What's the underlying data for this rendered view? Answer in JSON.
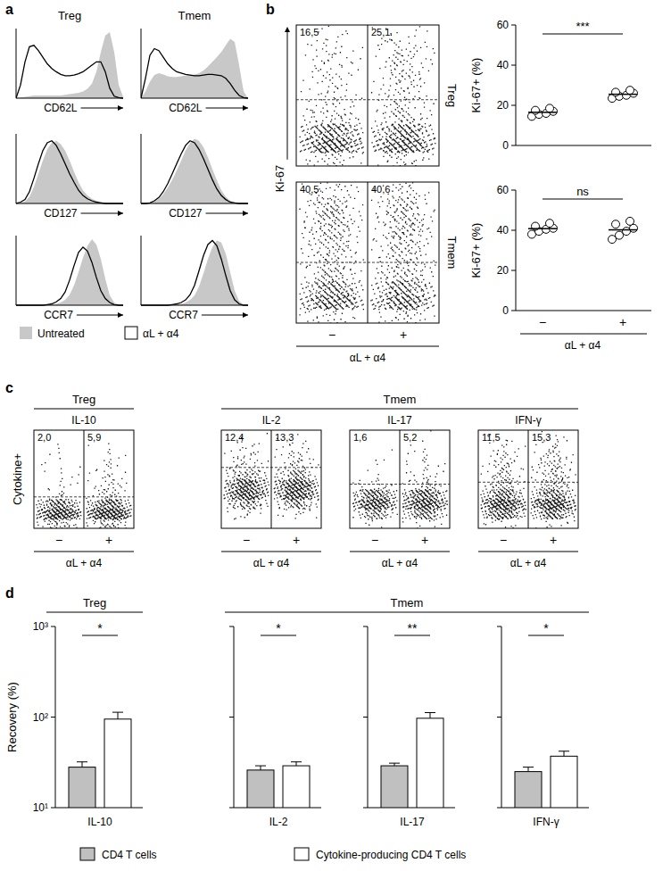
{
  "chart_data": [
    {
      "type": "histogram_overlay",
      "panel": "a",
      "columns": [
        "Treg",
        "Tmem"
      ],
      "x": [
        0,
        1,
        2,
        3,
        4,
        5,
        6,
        7,
        8,
        9,
        10,
        11,
        12,
        13,
        14,
        15,
        16,
        17,
        18,
        19,
        20,
        21,
        22,
        23,
        24
      ],
      "xlim": [
        0,
        24
      ],
      "ylim": [
        0,
        100
      ],
      "legend": "bottom",
      "series": [
        {
          "name": "Untreated",
          "color": "#c8c8c8",
          "type": "area"
        },
        {
          "name": "αL + α4",
          "color": "#000000",
          "type": "line"
        }
      ],
      "rows": [
        {
          "x_label": "CD62L",
          "cells": [
            {
              "values": [
                [
                  0,
                  1,
                  2,
                  3,
                  4,
                  4,
                  4,
                  4,
                  4,
                  4,
                  4,
                  5,
                  6,
                  7,
                  8,
                  10,
                  14,
                  22,
                  40,
                  70,
                  95,
                  100,
                  70,
                  20,
                  2
                ],
                [
                  0,
                  20,
                  55,
                  78,
                  80,
                  72,
                  62,
                  52,
                  45,
                  40,
                  36,
                  34,
                  34,
                  35,
                  37,
                  40,
                  45,
                  50,
                  55,
                  55,
                  40,
                  15,
                  3,
                  1,
                  0
                ]
              ]
            },
            {
              "values": [
                [
                  0,
                  10,
                  25,
                  35,
                  38,
                  36,
                  33,
                  32,
                  32,
                  33,
                  34,
                  35,
                  36,
                  38,
                  42,
                  48,
                  55,
                  62,
                  70,
                  80,
                  90,
                  85,
                  50,
                  10,
                  0
                ],
                [
                  0,
                  30,
                  65,
                  75,
                  72,
                  62,
                  52,
                  45,
                  40,
                  38,
                  36,
                  35,
                  34,
                  34,
                  35,
                  36,
                  36,
                  35,
                  34,
                  30,
                  22,
                  12,
                  4,
                  1,
                  0
                ]
              ]
            }
          ]
        },
        {
          "x_label": "CD127",
          "cells": [
            {
              "values": [
                [
                  0,
                  1,
                  3,
                  10,
                  25,
                  45,
                  65,
                  82,
                  92,
                  95,
                  90,
                  80,
                  65,
                  48,
                  32,
                  20,
                  12,
                  7,
                  4,
                  2,
                  1,
                  0,
                  0,
                  0,
                  0
                ],
                [
                  0,
                  2,
                  6,
                  18,
                  38,
                  60,
                  80,
                  92,
                  95,
                  88,
                  75,
                  60,
                  45,
                  32,
                  20,
                  12,
                  7,
                  4,
                  2,
                  1,
                  0,
                  0,
                  0,
                  0,
                  0
                ]
              ]
            },
            {
              "values": [
                [
                  0,
                  0,
                  1,
                  3,
                  7,
                  14,
                  24,
                  36,
                  50,
                  65,
                  80,
                  92,
                  98,
                  95,
                  85,
                  70,
                  52,
                  35,
                  20,
                  10,
                  4,
                  1,
                  0,
                  0,
                  0
                ],
                [
                  0,
                  0,
                  1,
                  4,
                  9,
                  18,
                  30,
                  45,
                  60,
                  75,
                  88,
                  95,
                  92,
                  82,
                  68,
                  52,
                  36,
                  22,
                  12,
                  6,
                  2,
                  1,
                  0,
                  0,
                  0
                ]
              ]
            }
          ]
        },
        {
          "x_label": "CCR7",
          "cells": [
            {
              "values": [
                [
                  0,
                  0,
                  0,
                  0,
                  0,
                  0,
                  0,
                  0,
                  1,
                  2,
                  4,
                  8,
                  16,
                  30,
                  50,
                  72,
                  90,
                  100,
                  92,
                  70,
                  40,
                  15,
                  4,
                  1,
                  0
                ],
                [
                  0,
                  0,
                  0,
                  0,
                  0,
                  0,
                  0,
                  1,
                  2,
                  5,
                  10,
                  20,
                  38,
                  60,
                  80,
                  88,
                  82,
                  65,
                  42,
                  22,
                  10,
                  4,
                  1,
                  0,
                  0
                ]
              ]
            },
            {
              "values": [
                [
                  0,
                  0,
                  0,
                  0,
                  0,
                  0,
                  0,
                  0,
                  1,
                  2,
                  4,
                  8,
                  15,
                  28,
                  48,
                  70,
                  88,
                  98,
                  95,
                  78,
                  50,
                  22,
                  6,
                  1,
                  0
                ],
                [
                  0,
                  0,
                  0,
                  0,
                  0,
                  0,
                  0,
                  1,
                  2,
                  4,
                  8,
                  16,
                  30,
                  52,
                  75,
                  92,
                  98,
                  90,
                  70,
                  45,
                  22,
                  8,
                  2,
                  0,
                  0
                ]
              ]
            }
          ]
        }
      ]
    },
    {
      "type": "dot_plot",
      "panel": "b",
      "y_label": "Ki-67",
      "x_label": "αL + α4",
      "categories": [
        "−",
        "+"
      ],
      "ylim": [
        0,
        100
      ],
      "bins": [
        0,
        10,
        20,
        30,
        40,
        50,
        60,
        70,
        80,
        90,
        100
      ],
      "plots": [
        {
          "title": "Treg",
          "gate": 47,
          "gate_labels": [
            "16,5",
            "25,1"
          ],
          "density": [
            [
              30,
              280,
              160,
              40,
              22,
              18,
              20,
              20,
              16,
              8
            ],
            [
              30,
              260,
              160,
              45,
              30,
              28,
              32,
              32,
              26,
              12
            ]
          ]
        },
        {
          "title": "Tmem",
          "gate": 43,
          "gate_labels": [
            "40,5",
            "40,6"
          ],
          "density": [
            [
              25,
              220,
              130,
              50,
              40,
              45,
              55,
              60,
              50,
              25
            ],
            [
              30,
              210,
              135,
              55,
              42,
              46,
              56,
              58,
              48,
              24
            ]
          ]
        }
      ]
    },
    {
      "type": "scatter",
      "panel": "b",
      "y_label": "Ki-67+ (%)",
      "x_label": "αL + α4",
      "categories": [
        "−",
        "+"
      ],
      "ylim": [
        0,
        60
      ],
      "yticks": [
        0,
        20,
        40,
        60
      ],
      "marker": "circle",
      "plots": [
        {
          "values": [
            [
              14.5,
              15.5,
              16,
              17,
              17.5,
              18.5
            ],
            [
              23.5,
              24.5,
              25,
              26,
              26.5,
              27.5
            ]
          ],
          "means": [
            16.5,
            25.5
          ],
          "significance": "***"
        },
        {
          "values": [
            [
              38,
              39.5,
              40.5,
              41,
              42,
              43.5
            ],
            [
              35.5,
              37.5,
              39.5,
              41,
              43,
              44.5
            ]
          ],
          "means": [
            40.8,
            40.2
          ],
          "significance": "ns"
        }
      ]
    },
    {
      "type": "dot_plot",
      "panel": "c",
      "y_label": "Cytokine+",
      "x_label": "αL + α4",
      "categories": [
        "−",
        "+"
      ],
      "ylim": [
        0,
        100
      ],
      "bins": [
        0,
        10,
        20,
        30,
        40,
        50,
        60,
        70,
        80,
        90,
        100
      ],
      "groups": [
        {
          "name": "Treg",
          "plots": [
            {
              "title": "IL-10",
              "gate": 32,
              "gate_labels": [
                "2,0",
                "5,9"
              ],
              "density": [
                [
                  40,
                  300,
                  120,
                  8,
                  6,
                  5,
                  4,
                  3,
                  2,
                  0
                ],
                [
                  40,
                  320,
                  140,
                  20,
                  16,
                  12,
                  8,
                  5,
                  3,
                  0
                ]
              ]
            }
          ]
        },
        {
          "name": "Tmem",
          "plots": [
            {
              "title": "IL-2",
              "gate": 62,
              "gate_labels": [
                "12,4",
                "13,3"
              ],
              "density": [
                [
                  0,
                  10,
                  60,
                  200,
                  180,
                  50,
                  18,
                  14,
                  8,
                  2
                ],
                [
                  0,
                  10,
                  60,
                  210,
                  190,
                  55,
                  20,
                  16,
                  9,
                  2
                ]
              ]
            },
            {
              "title": "IL-17",
              "gate": 45,
              "gate_labels": [
                "1,6",
                "5,2"
              ],
              "density": [
                [
                  5,
                  60,
                  220,
                  120,
                  15,
                  3,
                  2,
                  1,
                  1,
                  0
                ],
                [
                  8,
                  80,
                  240,
                  140,
                  25,
                  12,
                  9,
                  6,
                  3,
                  1
                ]
              ]
            },
            {
              "title": "IFN-γ",
              "gate": 47,
              "gate_labels": [
                "11,5",
                "15,3"
              ],
              "density": [
                [
                  10,
                  120,
                  260,
                  100,
                  35,
                  25,
                  22,
                  15,
                  8,
                  3
                ],
                [
                  10,
                  110,
                  250,
                  100,
                  38,
                  30,
                  28,
                  20,
                  10,
                  4
                ]
              ]
            }
          ]
        }
      ]
    },
    {
      "type": "bar",
      "panel": "d",
      "y_label": "Recovery (%)",
      "log": "y",
      "ylim": [
        10,
        1000
      ],
      "legend": "bottom",
      "yticks": [
        {
          "value": 10,
          "label": "10¹"
        },
        {
          "value": 100,
          "label": "10²"
        },
        {
          "value": 1000,
          "label": "10³"
        }
      ],
      "series": [
        {
          "name": "CD4 T cells",
          "color": "#c0c0c0"
        },
        {
          "name": "Cytokine-producing CD4 T cells",
          "color": "#ffffff"
        }
      ],
      "groups": [
        {
          "name": "Treg",
          "plots": [
            {
              "category": "IL-10",
              "values": [
                28,
                95
              ],
              "errors": [
                4,
                18
              ],
              "significance": "*"
            }
          ]
        },
        {
          "name": "Tmem",
          "plots": [
            {
              "category": "IL-2",
              "values": [
                26,
                29
              ],
              "errors": [
                3,
                3
              ],
              "significance": "*"
            },
            {
              "category": "IL-17",
              "values": [
                29,
                97
              ],
              "errors": [
                2,
                15
              ],
              "significance": "**"
            },
            {
              "category": "IFN-γ",
              "values": [
                25,
                37
              ],
              "errors": [
                3,
                5
              ],
              "significance": "*"
            }
          ]
        }
      ]
    }
  ]
}
